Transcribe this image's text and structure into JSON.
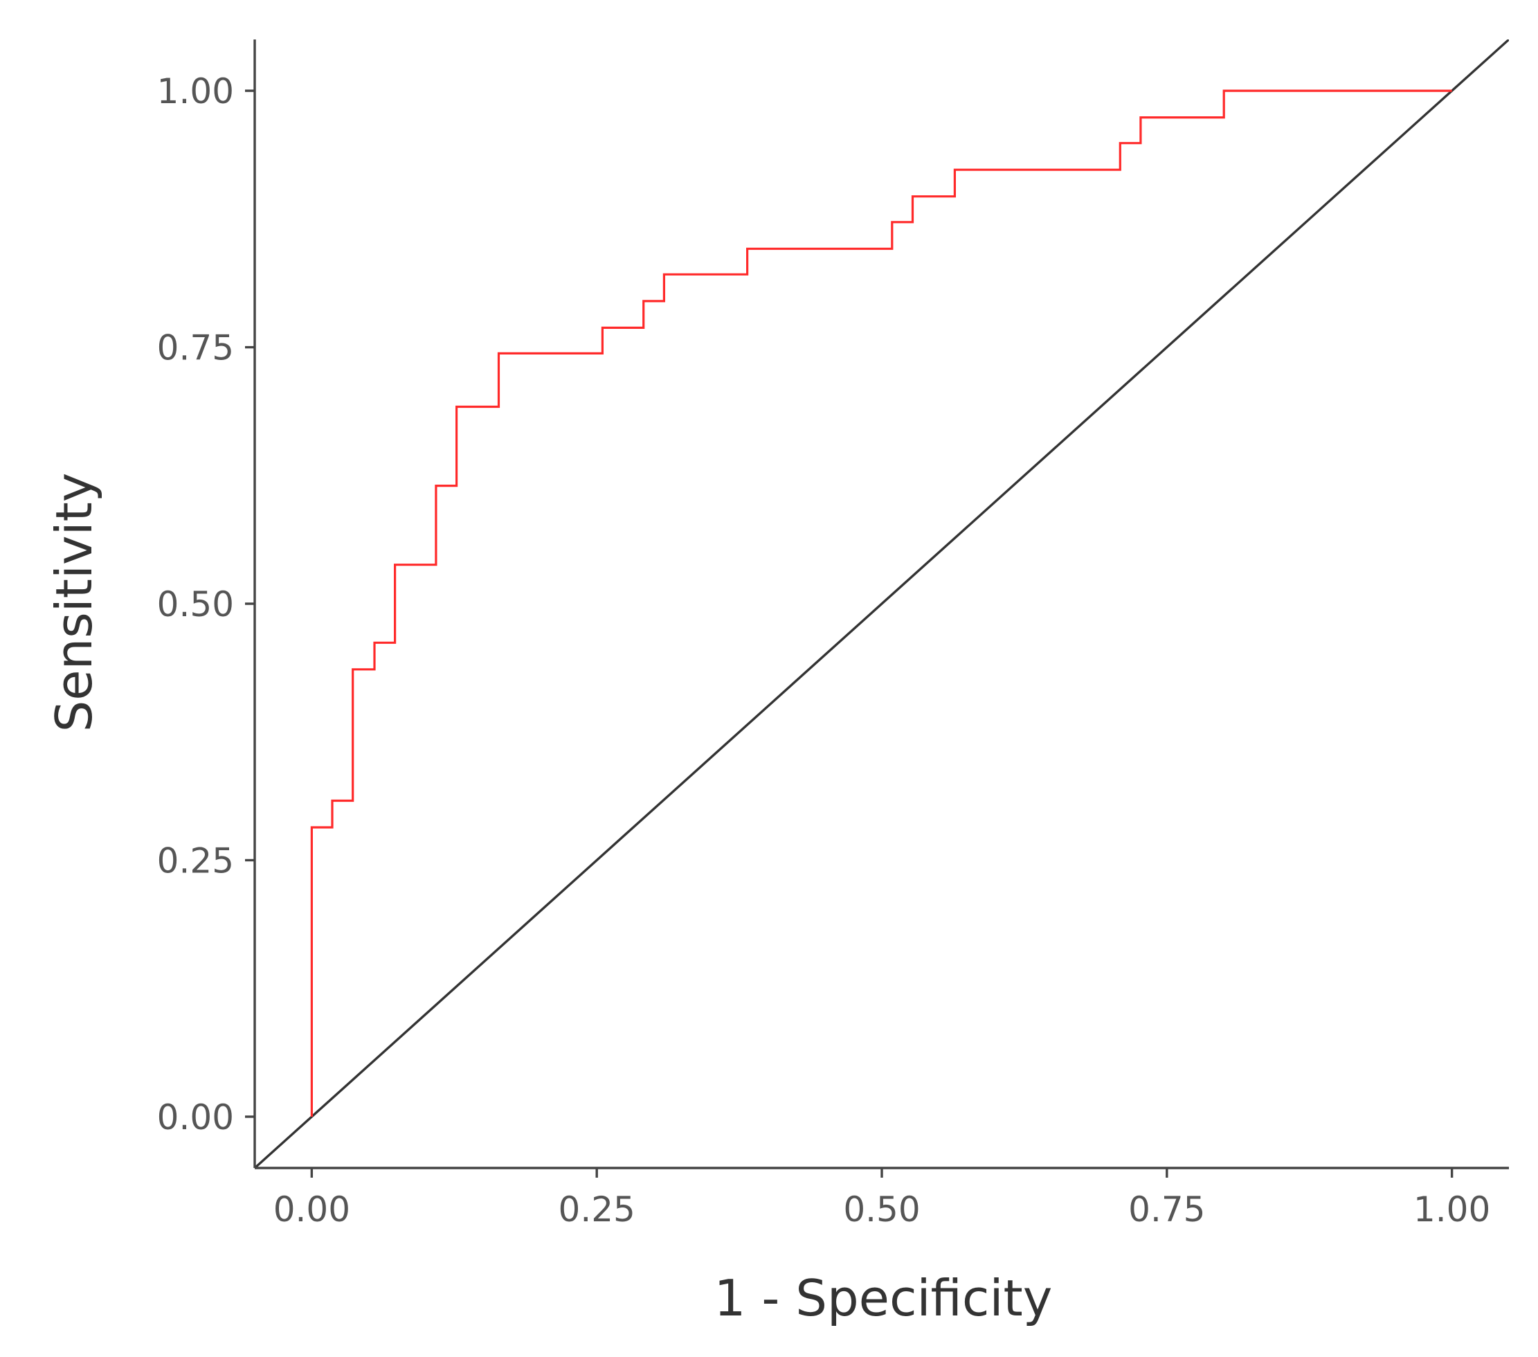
{
  "chart_data": {
    "type": "line",
    "title": "",
    "xlabel": "1 - Specificity",
    "ylabel": "Sensitivity",
    "xlim": [
      -0.05,
      1.05
    ],
    "ylim": [
      -0.05,
      1.05
    ],
    "x_ticks": [
      0,
      0.25,
      0.5,
      0.75,
      1
    ],
    "y_ticks": [
      0,
      0.25,
      0.5,
      0.75,
      1
    ],
    "x_tick_labels": [
      "0.00",
      "0.25",
      "0.50",
      "0.75",
      "1.00"
    ],
    "y_tick_labels": [
      "0.00",
      "0.25",
      "0.50",
      "0.75",
      "1.00"
    ],
    "grid": false,
    "legend": "none",
    "series": [
      {
        "style": "step",
        "color": "#ff2a2a",
        "x": [
          0.0,
          0.0,
          0.018,
          0.018,
          0.036,
          0.036,
          0.055,
          0.055,
          0.073,
          0.073,
          0.109,
          0.109,
          0.127,
          0.127,
          0.164,
          0.164,
          0.255,
          0.255,
          0.291,
          0.291,
          0.309,
          0.309,
          0.382,
          0.382,
          0.509,
          0.509,
          0.527,
          0.527,
          0.564,
          0.564,
          0.709,
          0.709,
          0.727,
          0.727,
          0.8,
          0.8,
          1.0
        ],
        "y": [
          0.0,
          0.282,
          0.282,
          0.308,
          0.308,
          0.436,
          0.436,
          0.462,
          0.462,
          0.538,
          0.538,
          0.615,
          0.615,
          0.692,
          0.692,
          0.744,
          0.744,
          0.769,
          0.769,
          0.795,
          0.795,
          0.821,
          0.821,
          0.846,
          0.846,
          0.872,
          0.872,
          0.897,
          0.897,
          0.923,
          0.923,
          0.949,
          0.949,
          0.974,
          0.974,
          1.0,
          1.0
        ]
      },
      {
        "style": "line",
        "color": "#333333",
        "x": [
          -0.05,
          1.05
        ],
        "y": [
          -0.05,
          1.05
        ]
      }
    ]
  }
}
